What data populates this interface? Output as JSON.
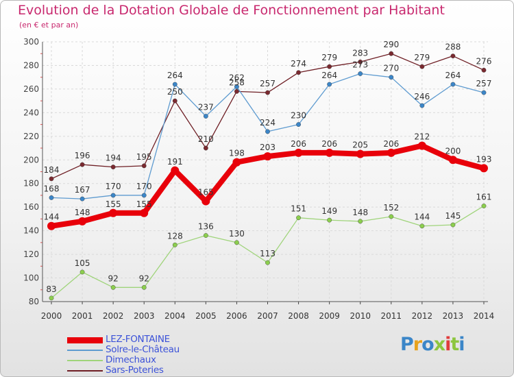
{
  "title": "Evolution de la Dotation Globale de Fonctionnement par Habitant",
  "subtitle": "(en € et par an)",
  "logo": {
    "text": "Proxiti",
    "letter_colors": [
      "#3b86c8",
      "#e8a21c",
      "#3b86c8",
      "#8dc63f",
      "#e03c3c",
      "#8dc63f",
      "#3b86c8"
    ]
  },
  "chart_data": {
    "type": "line",
    "title": "Evolution de la Dotation Globale de Fonctionnement par Habitant",
    "subtitle": "(en € et par an)",
    "xlabel": "",
    "ylabel": "",
    "ylim": [
      80,
      300
    ],
    "y_ticks": [
      "80",
      "100",
      "120",
      "140",
      "160",
      "180",
      "200",
      "220",
      "240",
      "260",
      "280",
      "300"
    ],
    "grid": true,
    "legend_position": "bottom-left",
    "x": [
      "2000",
      "2001",
      "2002",
      "2003",
      "2004",
      "2005",
      "2006",
      "2007",
      "2008",
      "2009",
      "2010",
      "2011",
      "2012",
      "2013",
      "2014"
    ],
    "series": [
      {
        "name": "Sars-Poteries",
        "color": "#6e1e24",
        "marker": "#7a2a30",
        "values": [
          184,
          196,
          194,
          195,
          250,
          210,
          258,
          257,
          274,
          279,
          283,
          290,
          279,
          288,
          276
        ]
      },
      {
        "name": "Solre-le-Château",
        "color": "#5e9bd0",
        "marker": "#3c86c8",
        "values": [
          168,
          167,
          170,
          170,
          264,
          237,
          262,
          224,
          230,
          264,
          273,
          270,
          246,
          264,
          257
        ]
      },
      {
        "name": "Dimechaux",
        "color": "#9fd47a",
        "marker": "#8cce4e",
        "values": [
          83,
          105,
          92,
          92,
          128,
          136,
          130,
          113,
          151,
          149,
          148,
          152,
          144,
          145,
          161
        ]
      },
      {
        "name": "LEZ-FONTAINE",
        "color": "#e8000a",
        "marker": "#e8000a",
        "values": [
          144,
          148,
          155,
          155,
          191,
          165,
          198,
          203,
          206,
          206,
          205,
          206,
          212,
          200,
          193
        ]
      }
    ]
  },
  "legend": [
    {
      "name": "LEZ-FONTAINE",
      "color": "#e8000a"
    },
    {
      "name": "Solre-le-Château",
      "color": "#5e9bd0"
    },
    {
      "name": "Dimechaux",
      "color": "#9fd47a"
    },
    {
      "name": "Sars-Poteries",
      "color": "#6e1e24"
    }
  ]
}
